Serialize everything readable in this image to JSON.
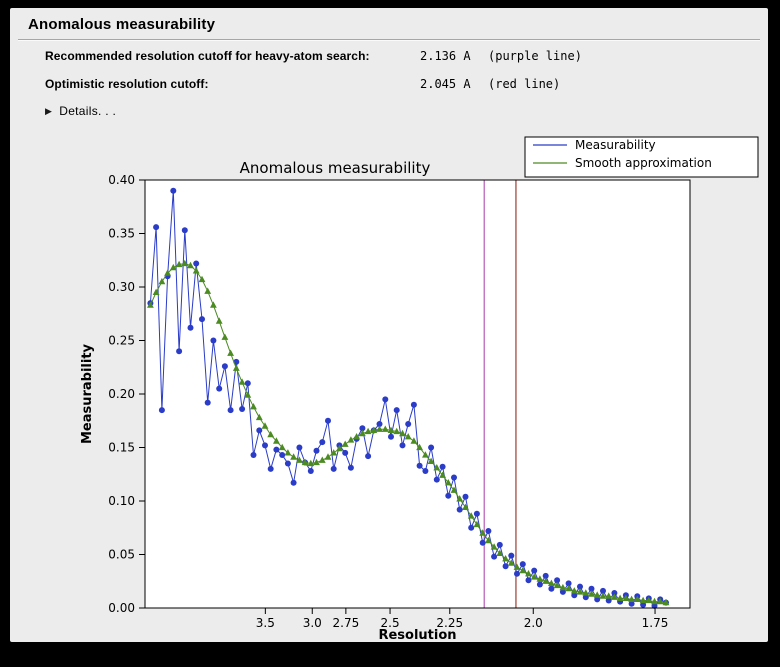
{
  "window": {
    "title": "Anomalous measurability"
  },
  "info": {
    "rows": [
      {
        "label": "Recommended resolution cutoff for heavy-atom search:",
        "value": "2.136 A",
        "note": "(purple line)"
      },
      {
        "label": "Optimistic resolution cutoff:",
        "value": "2.045 A",
        "note": "(red line)"
      }
    ],
    "details_label": "Details. . ."
  },
  "chart_data": {
    "type": "line",
    "title": "Anomalous measurability",
    "xlabel": "Resolution",
    "ylabel": "Measurability",
    "x_axis_note": "tick labels are resolution in Angstrom; positions proportional to 1/d^2",
    "x_range_s": [
      0.006,
      0.3485
    ],
    "ylim": [
      0.0,
      0.4
    ],
    "grid": false,
    "legend_position": "top-right",
    "x_ticks": [
      {
        "label": "3.5",
        "value": 3.5
      },
      {
        "label": "3.0",
        "value": 3.0
      },
      {
        "label": "2.75",
        "value": 2.75
      },
      {
        "label": "2.5",
        "value": 2.5
      },
      {
        "label": "2.25",
        "value": 2.25
      },
      {
        "label": "2.0",
        "value": 2.0
      },
      {
        "label": "1.75",
        "value": 1.75
      }
    ],
    "y_ticks": [
      {
        "label": "0.00",
        "value": 0.0
      },
      {
        "label": "0.05",
        "value": 0.05
      },
      {
        "label": "0.10",
        "value": 0.1
      },
      {
        "label": "0.15",
        "value": 0.15
      },
      {
        "label": "0.20",
        "value": 0.2
      },
      {
        "label": "0.25",
        "value": 0.25
      },
      {
        "label": "0.30",
        "value": 0.3
      },
      {
        "label": "0.35",
        "value": 0.35
      },
      {
        "label": "0.40",
        "value": 0.4
      }
    ],
    "x_s": [
      0.0094,
      0.013,
      0.0166,
      0.0202,
      0.0238,
      0.0274,
      0.031,
      0.0346,
      0.0382,
      0.0418,
      0.0454,
      0.049,
      0.0526,
      0.0562,
      0.0598,
      0.0634,
      0.067,
      0.0706,
      0.0742,
      0.0778,
      0.0814,
      0.085,
      0.0886,
      0.0922,
      0.0958,
      0.0994,
      0.103,
      0.1066,
      0.1102,
      0.1138,
      0.1174,
      0.121,
      0.1246,
      0.1282,
      0.1318,
      0.1354,
      0.139,
      0.1426,
      0.1462,
      0.1498,
      0.1534,
      0.157,
      0.1606,
      0.1642,
      0.1678,
      0.1714,
      0.175,
      0.1786,
      0.1822,
      0.1858,
      0.1894,
      0.193,
      0.1966,
      0.2002,
      0.2038,
      0.2074,
      0.211,
      0.2146,
      0.2182,
      0.2218,
      0.2254,
      0.229,
      0.2326,
      0.2362,
      0.2398,
      0.2434,
      0.247,
      0.2506,
      0.2542,
      0.2578,
      0.2614,
      0.265,
      0.2686,
      0.2722,
      0.2758,
      0.2794,
      0.283,
      0.2866,
      0.2902,
      0.2938,
      0.2974,
      0.301,
      0.3046,
      0.3082,
      0.3118,
      0.3154,
      0.319,
      0.3226,
      0.3262,
      0.3298,
      0.3334
    ],
    "series": [
      {
        "id": "measurability",
        "name": "Measurability",
        "color": "#2a3cc8",
        "marker": "circle",
        "values": [
          0.285,
          0.356,
          0.185,
          0.31,
          0.39,
          0.24,
          0.353,
          0.262,
          0.322,
          0.27,
          0.192,
          0.25,
          0.205,
          0.226,
          0.185,
          0.23,
          0.186,
          0.21,
          0.143,
          0.166,
          0.152,
          0.13,
          0.148,
          0.143,
          0.135,
          0.117,
          0.15,
          0.136,
          0.128,
          0.147,
          0.155,
          0.175,
          0.13,
          0.152,
          0.145,
          0.131,
          0.158,
          0.168,
          0.142,
          0.166,
          0.172,
          0.195,
          0.16,
          0.185,
          0.152,
          0.172,
          0.19,
          0.133,
          0.128,
          0.15,
          0.12,
          0.132,
          0.105,
          0.122,
          0.092,
          0.104,
          0.075,
          0.088,
          0.061,
          0.072,
          0.048,
          0.059,
          0.039,
          0.049,
          0.032,
          0.041,
          0.026,
          0.035,
          0.022,
          0.03,
          0.018,
          0.026,
          0.015,
          0.023,
          0.012,
          0.02,
          0.01,
          0.018,
          0.008,
          0.016,
          0.007,
          0.014,
          0.006,
          0.012,
          0.004,
          0.011,
          0.003,
          0.009,
          0.002,
          0.008,
          0.005
        ]
      },
      {
        "id": "smooth-approximation",
        "name": "Smooth approximation",
        "color": "#4c8a22",
        "marker": "triangle",
        "values": [
          0.283,
          0.295,
          0.305,
          0.313,
          0.318,
          0.321,
          0.322,
          0.32,
          0.315,
          0.307,
          0.296,
          0.283,
          0.268,
          0.253,
          0.238,
          0.224,
          0.211,
          0.199,
          0.188,
          0.178,
          0.17,
          0.162,
          0.156,
          0.15,
          0.145,
          0.141,
          0.138,
          0.136,
          0.135,
          0.136,
          0.138,
          0.141,
          0.145,
          0.149,
          0.153,
          0.157,
          0.16,
          0.163,
          0.165,
          0.166,
          0.167,
          0.167,
          0.166,
          0.165,
          0.163,
          0.16,
          0.156,
          0.15,
          0.143,
          0.137,
          0.131,
          0.124,
          0.117,
          0.11,
          0.102,
          0.094,
          0.086,
          0.078,
          0.07,
          0.063,
          0.057,
          0.051,
          0.046,
          0.042,
          0.038,
          0.035,
          0.032,
          0.029,
          0.027,
          0.025,
          0.023,
          0.021,
          0.019,
          0.018,
          0.016,
          0.015,
          0.014,
          0.013,
          0.012,
          0.011,
          0.011,
          0.01,
          0.009,
          0.009,
          0.008,
          0.008,
          0.007,
          0.007,
          0.006,
          0.006,
          0.005
        ]
      }
    ],
    "vlines": [
      {
        "id": "vline-purple",
        "name": "Recommended resolution cutoff (purple line)",
        "resolution": 2.136,
        "color": "#b75ab7"
      },
      {
        "id": "vline-red",
        "name": "Optimistic resolution cutoff (red line)",
        "resolution": 2.045,
        "color": "#9e3d31"
      }
    ]
  }
}
